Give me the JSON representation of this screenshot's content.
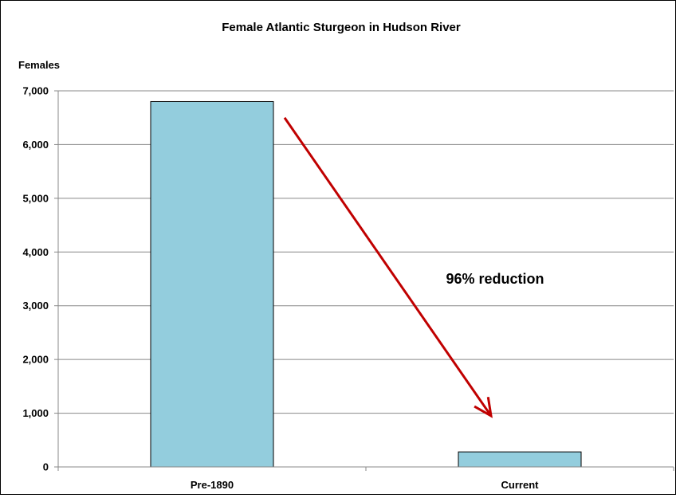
{
  "chart_data": {
    "type": "bar",
    "title": "Female Atlantic Sturgeon in Hudson River",
    "ylabel": "Females",
    "xlabel": "",
    "categories": [
      "Pre-1890",
      "Current"
    ],
    "values": [
      6800,
      280
    ],
    "ylim": [
      0,
      7000
    ],
    "yticks": [
      "0",
      "1,000",
      "2,000",
      "3,000",
      "4,000",
      "5,000",
      "6,000",
      "7,000"
    ],
    "ytick_values": [
      0,
      1000,
      2000,
      3000,
      4000,
      5000,
      6000,
      7000
    ],
    "grid": true,
    "legend": "none",
    "annotation": {
      "text": "96% reduction",
      "arrow_from": {
        "category": "Pre-1890",
        "value": 6500
      },
      "arrow_to": {
        "category": "Current",
        "value": 950
      }
    },
    "colors": {
      "bar": "#93CDDD",
      "bar_stroke": "#000000",
      "arrow": "#C00000",
      "grid": "#888888"
    }
  }
}
